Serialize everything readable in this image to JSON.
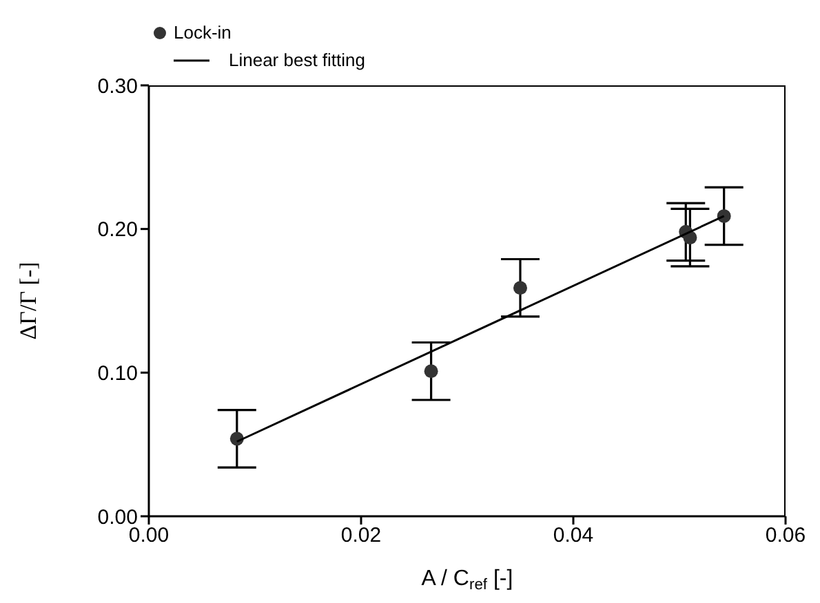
{
  "chart_data": {
    "type": "scatter",
    "xlabel": "A / C$_{ref}$ [-]",
    "ylabel": "ΔΓ/Γ [-]",
    "xlim": [
      0,
      0.06
    ],
    "xticks": [
      {
        "value": 0,
        "label": "0.00"
      },
      {
        "value": 0.02,
        "label": "0.02"
      },
      {
        "value": 0.04,
        "label": "0.04"
      },
      {
        "value": 0.06,
        "label": "0.06"
      }
    ],
    "ylim": [
      0,
      0.3
    ],
    "yticks": [
      {
        "value": 0,
        "label": "0.00"
      },
      {
        "value": 0.1,
        "label": "0.10"
      },
      {
        "value": 0.2,
        "label": "0.20"
      },
      {
        "value": 0.3,
        "label": "0.30"
      }
    ],
    "legend": "top left",
    "series": [
      {
        "name": "Lock-in",
        "marker": "circle",
        "color": "#333333",
        "x": [
          0.0083,
          0.0266,
          0.035,
          0.0506,
          0.051,
          0.0542
        ],
        "values": [
          0.054,
          0.101,
          0.159,
          0.198,
          0.194,
          0.209
        ],
        "errors": [
          0.02,
          0.02,
          0.02,
          0.02,
          0.02,
          0.02
        ]
      },
      {
        "name": "Linear best fitting",
        "type": "line",
        "marker": "none",
        "line_style": "solid",
        "color": "#000000",
        "x": [
          0.0083,
          0.0542
        ],
        "values": [
          0.052,
          0.209
        ]
      }
    ]
  }
}
